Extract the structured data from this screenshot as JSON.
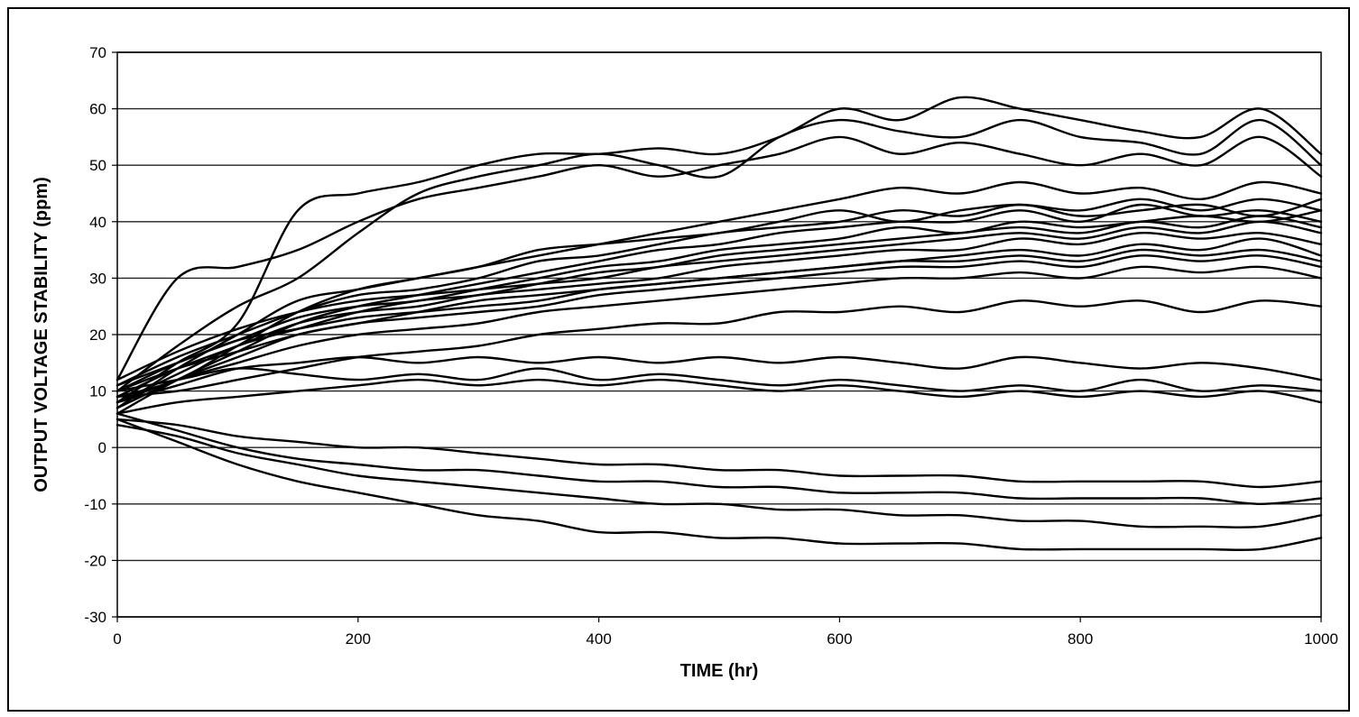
{
  "chart_data": {
    "type": "line",
    "title": "",
    "xlabel": "TIME (hr)",
    "ylabel": "OUTPUT VOLTAGE STABILITY (ppm)",
    "xlim": [
      0,
      1000
    ],
    "ylim": [
      -30,
      70
    ],
    "x_ticks": [
      0,
      200,
      400,
      600,
      800,
      1000
    ],
    "y_ticks": [
      -30,
      -20,
      -10,
      0,
      10,
      20,
      30,
      40,
      50,
      60,
      70
    ],
    "grid": "horizontal",
    "legend": "none",
    "line_color": "#000000",
    "series_x": [
      0,
      50,
      100,
      150,
      200,
      250,
      300,
      350,
      400,
      450,
      500,
      550,
      600,
      650,
      700,
      750,
      800,
      850,
      900,
      950,
      1000
    ],
    "series": [
      {
        "values": [
          8,
          15,
          22,
          42,
          45,
          47,
          50,
          52,
          52,
          53,
          52,
          55,
          60,
          58,
          62,
          60,
          58,
          56,
          55,
          60,
          52
        ]
      },
      {
        "values": [
          10,
          18,
          25,
          30,
          38,
          45,
          48,
          50,
          52,
          50,
          48,
          55,
          58,
          56,
          55,
          58,
          55,
          54,
          52,
          58,
          50
        ]
      },
      {
        "values": [
          12,
          30,
          32,
          35,
          40,
          44,
          46,
          48,
          50,
          48,
          50,
          52,
          55,
          52,
          54,
          52,
          50,
          52,
          50,
          55,
          48
        ]
      },
      {
        "values": [
          9,
          12,
          18,
          24,
          28,
          30,
          32,
          34,
          36,
          38,
          40,
          42,
          44,
          46,
          45,
          47,
          45,
          46,
          44,
          47,
          45
        ]
      },
      {
        "values": [
          7,
          14,
          20,
          26,
          28,
          30,
          32,
          35,
          36,
          37,
          38,
          40,
          42,
          40,
          42,
          43,
          42,
          44,
          42,
          44,
          42
        ]
      },
      {
        "values": [
          11,
          16,
          20,
          24,
          27,
          28,
          30,
          33,
          34,
          36,
          38,
          39,
          40,
          42,
          41,
          43,
          41,
          42,
          43,
          41,
          44
        ]
      },
      {
        "values": [
          6,
          12,
          17,
          22,
          25,
          27,
          29,
          31,
          33,
          35,
          36,
          38,
          39,
          40,
          40,
          42,
          40,
          43,
          41,
          42,
          40
        ]
      },
      {
        "values": [
          10,
          15,
          19,
          23,
          25,
          26,
          28,
          30,
          32,
          33,
          35,
          36,
          37,
          39,
          38,
          40,
          39,
          40,
          41,
          40,
          42
        ]
      },
      {
        "values": [
          8,
          13,
          18,
          21,
          24,
          26,
          27,
          29,
          31,
          32,
          34,
          35,
          36,
          37,
          38,
          39,
          38,
          40,
          39,
          41,
          39
        ]
      },
      {
        "values": [
          12,
          17,
          21,
          24,
          26,
          27,
          28,
          29,
          30,
          32,
          33,
          34,
          35,
          36,
          37,
          38,
          37,
          39,
          38,
          40,
          38
        ]
      },
      {
        "values": [
          9,
          14,
          18,
          22,
          24,
          25,
          27,
          28,
          29,
          30,
          32,
          33,
          34,
          35,
          35,
          37,
          36,
          38,
          37,
          38,
          36
        ]
      },
      {
        "values": [
          7,
          12,
          16,
          20,
          22,
          24,
          26,
          27,
          28,
          29,
          30,
          31,
          32,
          33,
          34,
          35,
          34,
          36,
          35,
          37,
          34
        ]
      },
      {
        "values": [
          11,
          15,
          19,
          21,
          23,
          24,
          25,
          26,
          28,
          29,
          30,
          31,
          32,
          33,
          33,
          34,
          33,
          35,
          34,
          35,
          33
        ]
      },
      {
        "values": [
          10,
          14,
          17,
          20,
          22,
          23,
          24,
          25,
          27,
          28,
          29,
          30,
          31,
          32,
          32,
          33,
          32,
          34,
          33,
          34,
          32
        ]
      },
      {
        "values": [
          8,
          12,
          15,
          18,
          20,
          21,
          22,
          24,
          25,
          26,
          27,
          28,
          29,
          30,
          30,
          31,
          30,
          32,
          31,
          32,
          30
        ]
      },
      {
        "values": [
          9,
          10,
          12,
          14,
          16,
          17,
          18,
          20,
          21,
          22,
          22,
          24,
          24,
          25,
          24,
          26,
          25,
          26,
          24,
          26,
          25
        ]
      },
      {
        "values": [
          8,
          11,
          14,
          15,
          16,
          15,
          16,
          15,
          16,
          15,
          16,
          15,
          16,
          15,
          14,
          16,
          15,
          14,
          15,
          14,
          12
        ]
      },
      {
        "values": [
          10,
          12,
          14,
          13,
          12,
          13,
          12,
          14,
          12,
          13,
          12,
          11,
          12,
          11,
          10,
          11,
          10,
          12,
          10,
          11,
          10
        ]
      },
      {
        "values": [
          6,
          8,
          9,
          10,
          11,
          12,
          11,
          12,
          11,
          12,
          11,
          10,
          11,
          10,
          9,
          10,
          9,
          10,
          9,
          10,
          8
        ]
      },
      {
        "values": [
          5,
          4,
          2,
          1,
          0,
          0,
          -1,
          -2,
          -3,
          -3,
          -4,
          -4,
          -5,
          -5,
          -5,
          -6,
          -6,
          -6,
          -6,
          -7,
          -6
        ]
      },
      {
        "values": [
          6,
          3,
          0,
          -2,
          -3,
          -4,
          -4,
          -5,
          -6,
          -6,
          -7,
          -7,
          -8,
          -8,
          -8,
          -9,
          -9,
          -9,
          -9,
          -10,
          -9
        ]
      },
      {
        "values": [
          4,
          2,
          -1,
          -3,
          -5,
          -6,
          -7,
          -8,
          -9,
          -10,
          -10,
          -11,
          -11,
          -12,
          -12,
          -13,
          -13,
          -14,
          -14,
          -14,
          -12
        ]
      },
      {
        "values": [
          5,
          1,
          -3,
          -6,
          -8,
          -10,
          -12,
          -13,
          -15,
          -15,
          -16,
          -16,
          -17,
          -17,
          -17,
          -18,
          -18,
          -18,
          -18,
          -18,
          -16
        ]
      }
    ]
  }
}
